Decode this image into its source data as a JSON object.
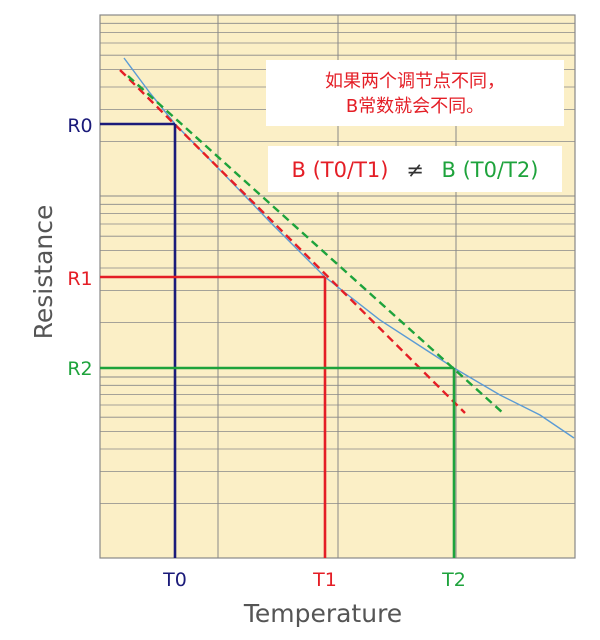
{
  "chart_data": {
    "type": "line",
    "xlabel": "Temperature",
    "ylabel": "Resistance",
    "scale": "semi-log (log resistance vs reciprocal temperature)",
    "grid": true,
    "colors": {
      "background": "#fbefc6",
      "grid": "#888888",
      "curve": "#5b9bd5",
      "t0": "#1b1b7a",
      "t1": "#e41e26",
      "t2": "#1ea33c"
    },
    "points": [
      {
        "t_label": "T0",
        "r_label": "R0",
        "color": "#1b1b7a"
      },
      {
        "t_label": "T1",
        "r_label": "R1",
        "color": "#e41e26"
      },
      {
        "t_label": "T2",
        "r_label": "R2",
        "color": "#1ea33c"
      }
    ],
    "series": [
      {
        "kind": "curve",
        "color": "#5b9bd5"
      },
      {
        "kind": "tangent",
        "through": [
          "T0",
          "T1"
        ],
        "style": "dashed",
        "color": "#e41e26"
      },
      {
        "kind": "tangent",
        "through": [
          "T0",
          "T2"
        ],
        "style": "dashed",
        "color": "#1ea33c"
      }
    ],
    "annotation": {
      "line1": "如果两个调节点不同，",
      "line2": "B常数就会不同。",
      "formula_left": "B (T0/T1)",
      "formula_neq": "≠",
      "formula_right": "B (T0/T2)"
    }
  }
}
